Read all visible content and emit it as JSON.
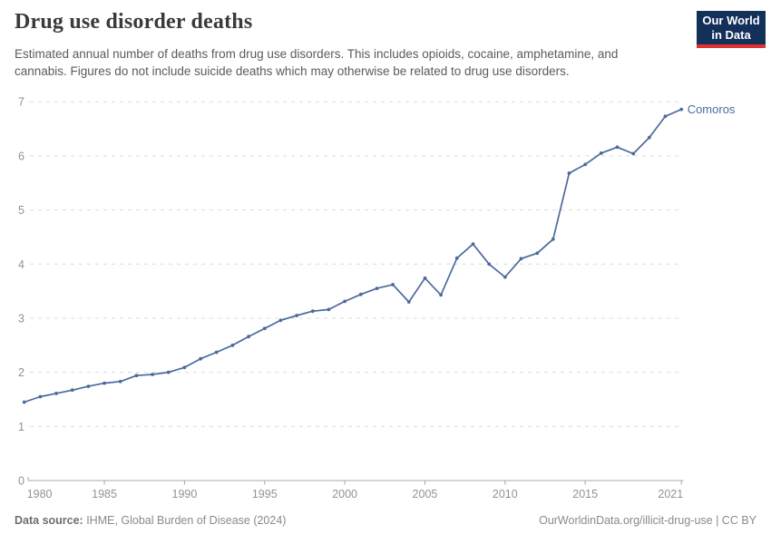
{
  "header": {
    "title": "Drug use disorder deaths",
    "subtitle": "Estimated annual number of deaths from drug use disorders. This includes opioids, cocaine, amphetamine, and cannabis. Figures do not include suicide deaths which may otherwise be related to drug use disorders.",
    "logo": {
      "line1": "Our World",
      "line2": "in Data",
      "bg_color": "#12305A",
      "accent_color": "#E0322E"
    }
  },
  "chart_data": {
    "type": "line",
    "title": "Drug use disorder deaths",
    "series": [
      {
        "name": "Comoros",
        "x": [
          1980,
          1981,
          1982,
          1983,
          1984,
          1985,
          1986,
          1987,
          1988,
          1989,
          1990,
          1991,
          1992,
          1993,
          1994,
          1995,
          1996,
          1997,
          1998,
          1999,
          2000,
          2001,
          2002,
          2003,
          2004,
          2005,
          2006,
          2007,
          2008,
          2009,
          2010,
          2011,
          2012,
          2013,
          2014,
          2015,
          2016,
          2017,
          2018,
          2019,
          2020,
          2021
        ],
        "values": [
          1.45,
          1.55,
          1.61,
          1.67,
          1.74,
          1.8,
          1.83,
          1.94,
          1.96,
          2.0,
          2.09,
          2.25,
          2.37,
          2.5,
          2.66,
          2.81,
          2.96,
          3.05,
          3.13,
          3.16,
          3.31,
          3.44,
          3.55,
          3.62,
          3.3,
          3.74,
          3.43,
          4.11,
          4.37,
          4.0,
          3.76,
          4.1,
          4.2,
          4.46,
          5.68,
          5.84,
          6.05,
          6.16,
          6.04,
          6.34,
          6.73,
          6.86
        ]
      }
    ],
    "x_ticks": [
      1980,
      1985,
      1990,
      1995,
      2000,
      2005,
      2010,
      2015,
      2021
    ],
    "y_ticks": [
      0,
      1,
      2,
      3,
      4,
      5,
      6,
      7
    ],
    "xlim": [
      1980,
      2021
    ],
    "ylim": [
      0,
      7
    ],
    "grid": true,
    "legend_position": "end-of-line",
    "line_color": "#4C6A9C",
    "grid_color": "#dcdcdc",
    "axis_color": "#a8a8a8",
    "tick_label_color": "#929292"
  },
  "footer": {
    "source_label": "Data source:",
    "source_text": " IHME, Global Burden of Disease (2024)",
    "rights": "OurWorldinData.org/illicit-drug-use | CC BY"
  }
}
